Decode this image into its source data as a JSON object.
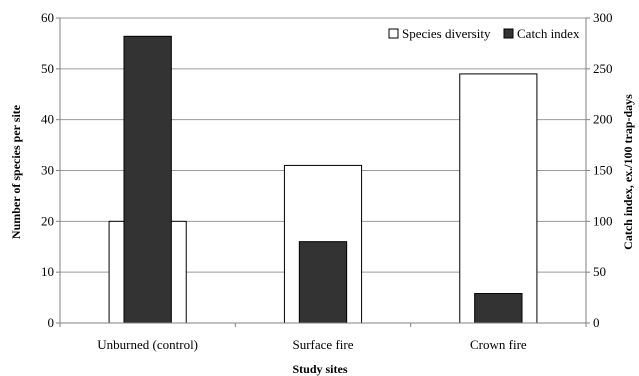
{
  "chart_data": {
    "type": "bar",
    "xlabel": "Study sites",
    "categories": [
      "Unburned (control)",
      "Surface fire",
      "Crown fire"
    ],
    "y_left": {
      "label": "Number of species per site",
      "lim": [
        0,
        60
      ],
      "ticks": [
        "0",
        "10",
        "20",
        "30",
        "40",
        "50",
        "60"
      ]
    },
    "y_right": {
      "label": "Catch index, ex./100 trap-days",
      "lim": [
        0,
        300
      ],
      "ticks": [
        "0",
        "50",
        "100",
        "150",
        "200",
        "250",
        "300"
      ]
    },
    "series": [
      {
        "name": "Species diversity",
        "axis": "left",
        "color": "#ffffff",
        "values": [
          20,
          31,
          49
        ]
      },
      {
        "name": "Catch index",
        "axis": "right",
        "color": "#333333",
        "values": [
          282,
          80,
          29
        ]
      }
    ],
    "grid": true,
    "legend": "top-right"
  }
}
